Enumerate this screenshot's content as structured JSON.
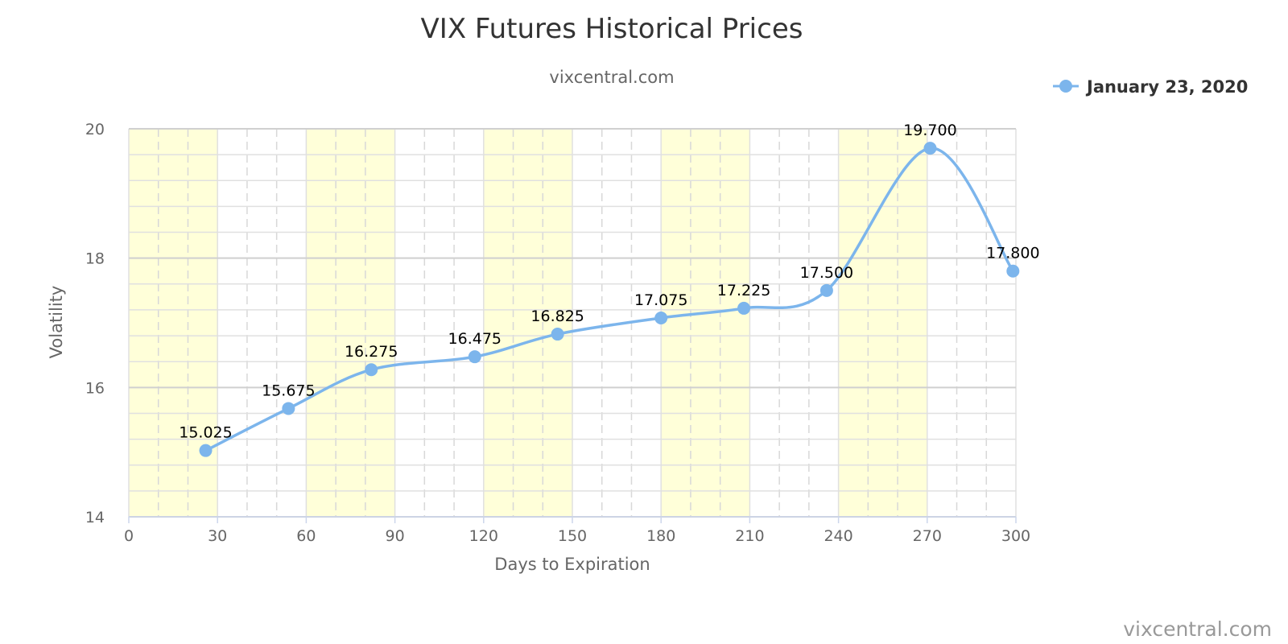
{
  "chart_data": {
    "type": "line",
    "title": "VIX Futures Historical Prices",
    "subtitle": "vixcentral.com",
    "xlabel": "Days to Expiration",
    "ylabel": "Volatility",
    "xlim": [
      0,
      300
    ],
    "ylim": [
      14,
      20
    ],
    "x_ticks": [
      0,
      30,
      60,
      90,
      120,
      150,
      180,
      210,
      240,
      270,
      300
    ],
    "y_ticks": [
      14,
      16,
      18,
      20
    ],
    "grid": true,
    "banded_x_intervals": [
      [
        0,
        30
      ],
      [
        60,
        90
      ],
      [
        120,
        150
      ],
      [
        180,
        210
      ],
      [
        240,
        270
      ],
      [
        300,
        301
      ]
    ],
    "band_color": "#ffffd9",
    "legend_position": "top-right",
    "series": [
      {
        "name": "January 23, 2020",
        "color": "#7cb5ec",
        "x": [
          26,
          54,
          82,
          117,
          145,
          180,
          208,
          236,
          271,
          299
        ],
        "y": [
          15.025,
          15.675,
          16.275,
          16.475,
          16.825,
          17.075,
          17.225,
          17.5,
          19.7,
          17.8
        ],
        "labels": [
          "15.025",
          "15.675",
          "16.275",
          "16.475",
          "16.825",
          "17.075",
          "17.225",
          "17.500",
          "19.700",
          "17.800"
        ]
      }
    ],
    "credit": "vixcentral.com"
  }
}
